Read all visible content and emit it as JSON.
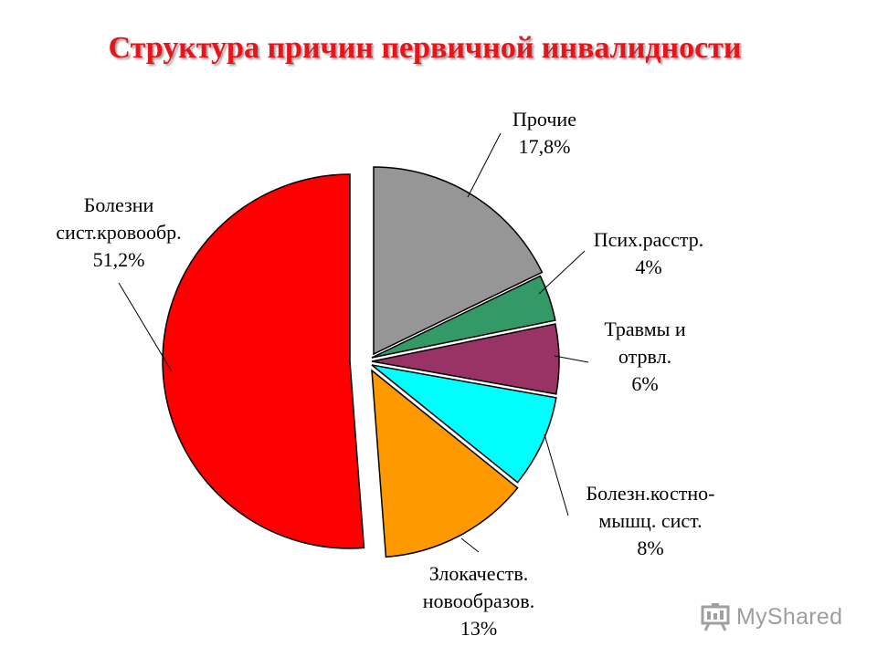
{
  "title": "Структура причин первичной инвалидности",
  "chart_data": {
    "type": "pie",
    "title": "Структура причин первичной инвалидности",
    "slices": [
      {
        "label_lines": [
          "Прочие",
          "17,8%"
        ],
        "value": 17.8,
        "color": "#969696"
      },
      {
        "label_lines": [
          "Псих.расстр.",
          "4%"
        ],
        "value": 4,
        "color": "#339966"
      },
      {
        "label_lines": [
          "Травмы и",
          "отрвл.",
          "6%"
        ],
        "value": 6,
        "color": "#993366"
      },
      {
        "label_lines": [
          "Болезн.костно-",
          "мышц. сист.",
          "8%"
        ],
        "value": 8,
        "color": "#00ffff"
      },
      {
        "label_lines": [
          "Злокачеств.",
          "новообразов.",
          "13%"
        ],
        "value": 13,
        "color": "#ff9900"
      },
      {
        "label_lines": [
          "Болезни",
          "сист.кровообр.",
          "51,2%"
        ],
        "value": 51.2,
        "color": "#ff0000"
      }
    ]
  },
  "watermark": {
    "text": "MyShared",
    "icon": "presentation-board-icon"
  }
}
